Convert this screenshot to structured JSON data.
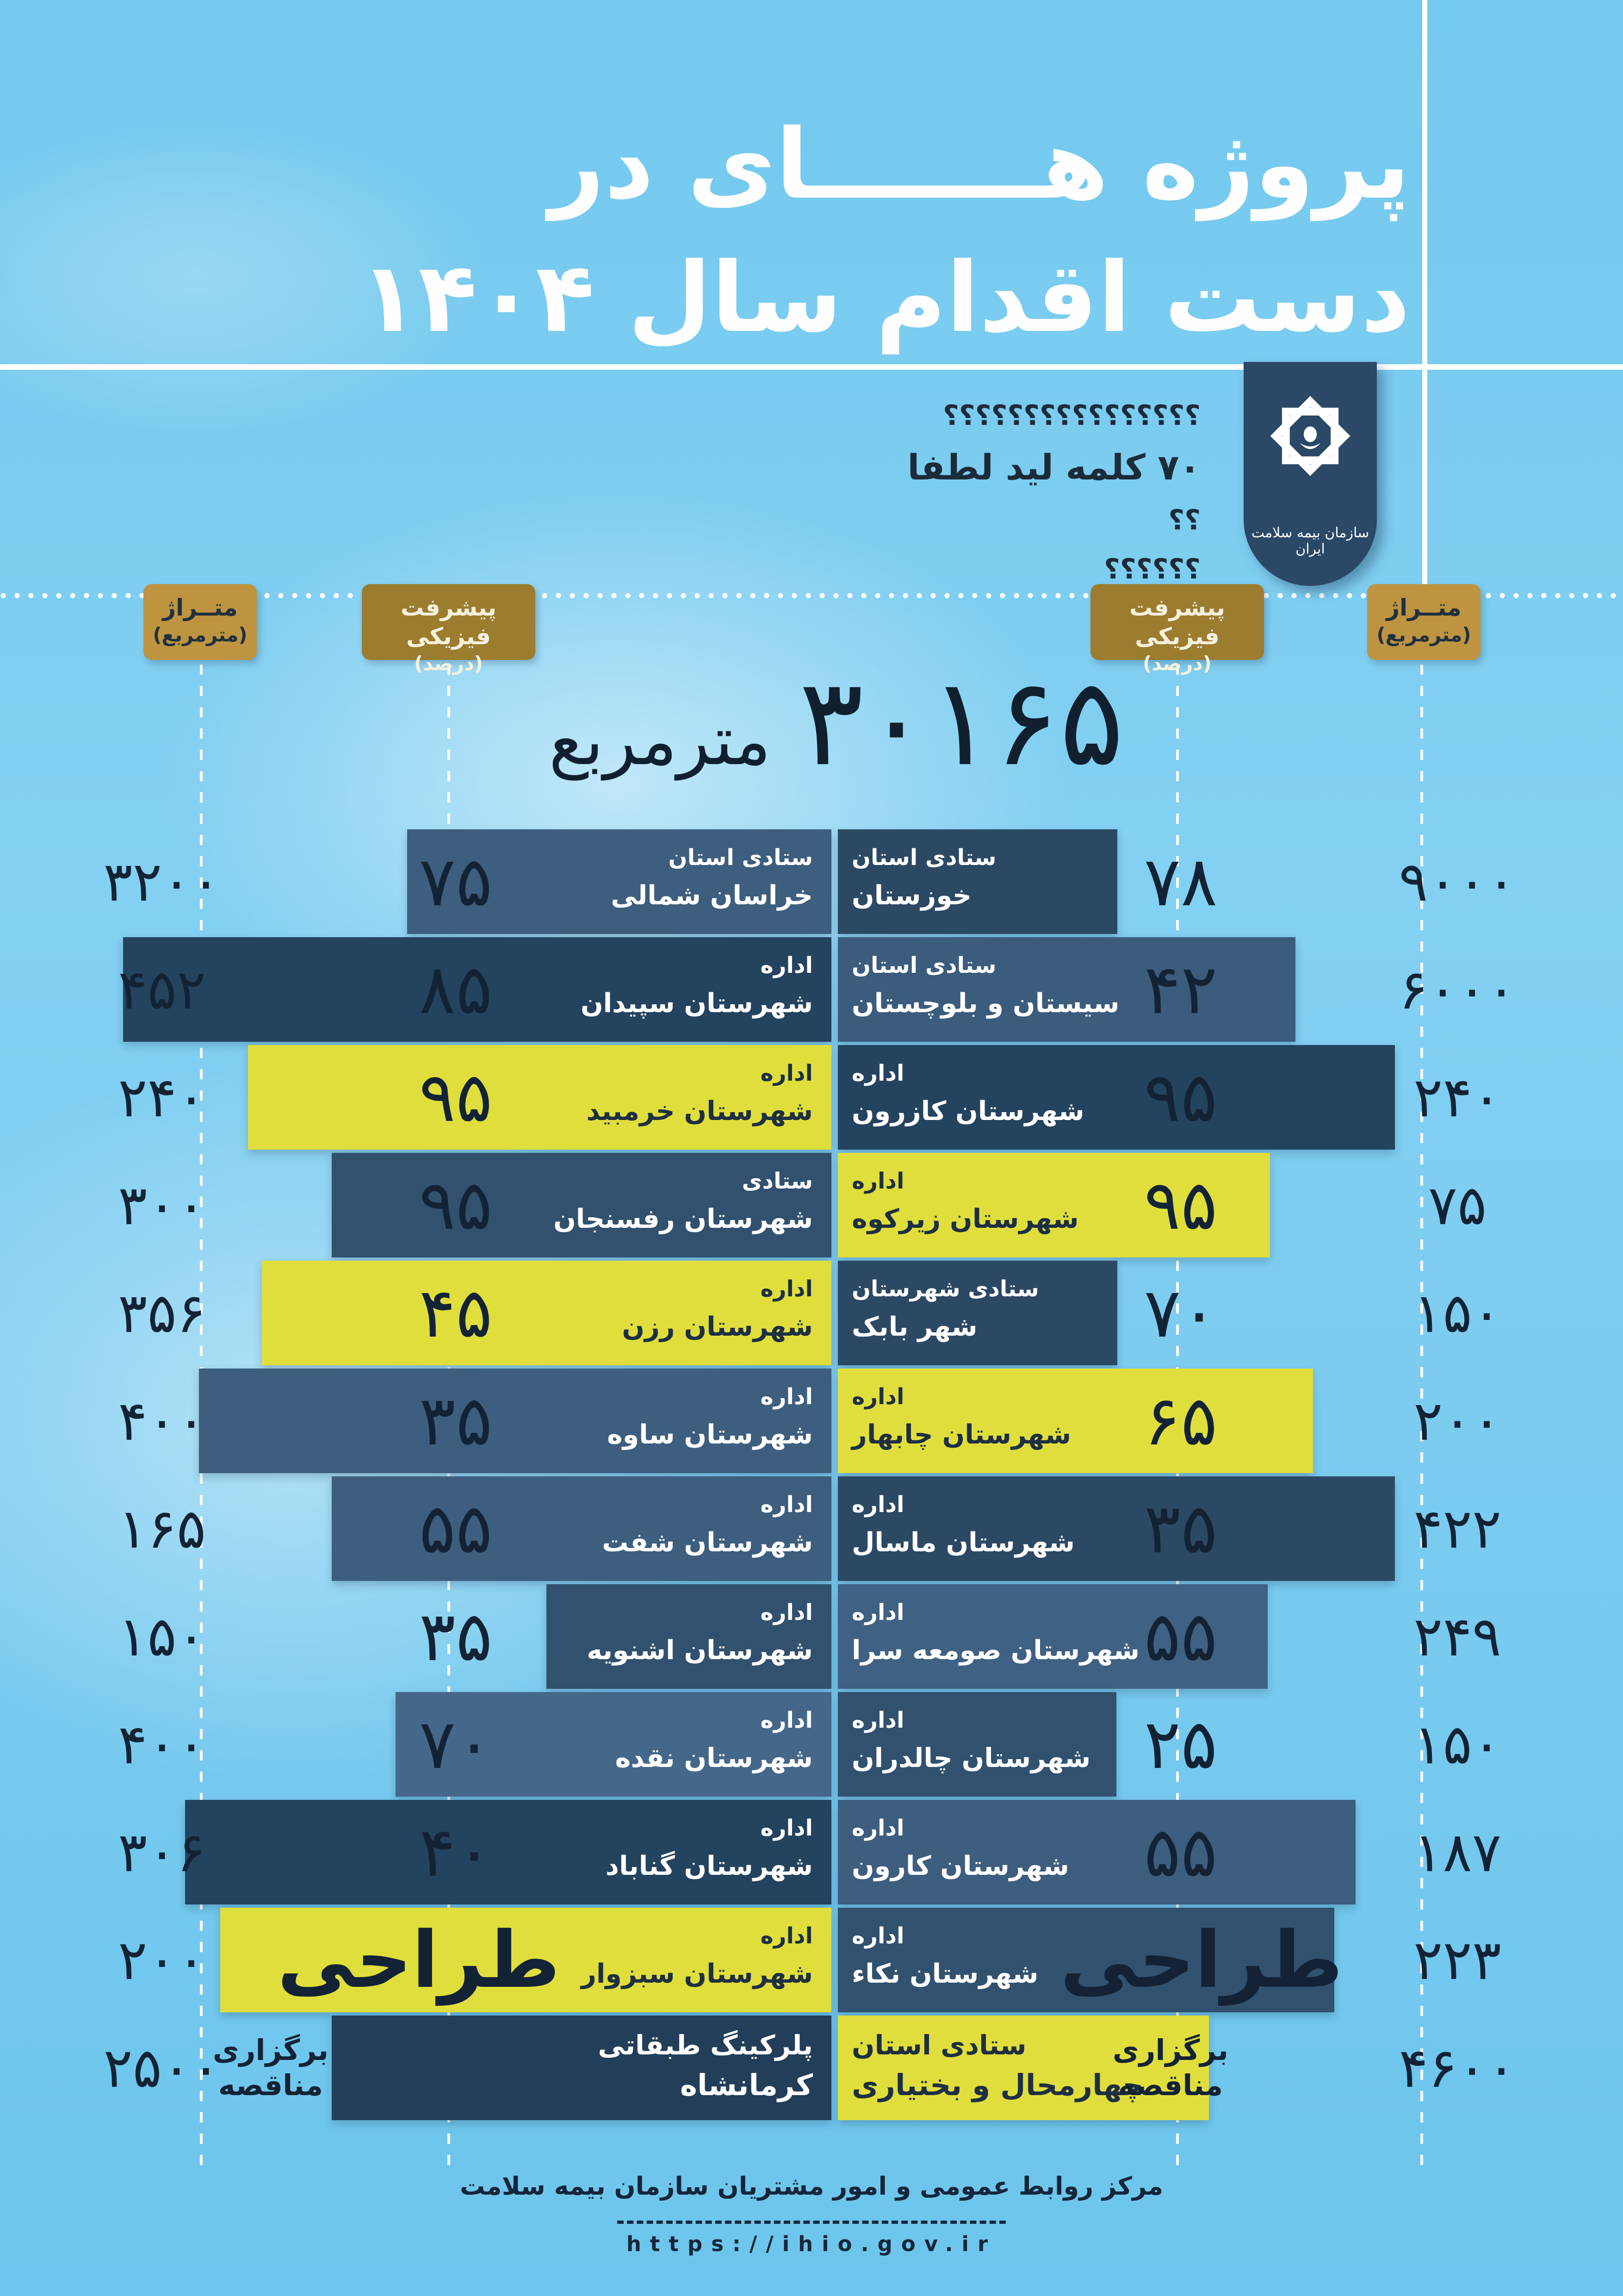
{
  "title": {
    "line1": "پروژه هـــــــای در",
    "line2": "دست اقدام سال ۱۴۰۴"
  },
  "lead": {
    "line1": "؟؟؟؟؟؟؟؟؟؟؟؟؟؟؟؟",
    "line2": "۷۰ کلمه لید لطفا",
    "line3": "؟؟",
    "line4": "؟؟؟؟؟؟"
  },
  "logo": {
    "org_name": "سازمان بیمه سلامت ایران",
    "emblem": "ihio-knot-star-icon"
  },
  "headers": {
    "metraj": {
      "line1": "متــراژ",
      "line2": "(مترمربع)"
    },
    "progress": {
      "line1": "پیشرفت فیزیکی",
      "line2": "(درصد)"
    }
  },
  "total": {
    "value": "۳۰۱۶۵",
    "unit": "مترمربع"
  },
  "colors": {
    "background": "#79CBEF",
    "yellow": "#E0DE3C",
    "gold_metraj": "#BE9440",
    "gold_progress": "#9C7C2F",
    "ink": "#132335",
    "bar_dark": "#24435F",
    "bar_navy": "#2C4964",
    "bar_mid": "#31516F",
    "bar_slate": "#3D5E7E",
    "bar_light": "#45678A"
  },
  "rows": [
    {
      "left": {
        "cat": "ستادی استان",
        "name": "خراسان شمالی",
        "value": "۷۵",
        "metraj": "۳۲۰۰",
        "bar_start": 880,
        "color": "#3D5E7E",
        "yellow": false,
        "value_style": "num",
        "value_dx": 0,
        "big_text": false
      },
      "right": {
        "cat": "ستادی استان",
        "name": "خوزستان",
        "value": "۷۸",
        "metraj": "۹۰۰۰",
        "bar_end": 2415,
        "color": "#2C4964",
        "yellow": false,
        "value_style": "num",
        "value_dx": 0,
        "big_text": false
      }
    },
    {
      "left": {
        "cat": "اداره",
        "name": "شهرستان سپیدان",
        "value": "۸۵",
        "metraj": "۴۵۲",
        "bar_start": 266,
        "color": "#24435F",
        "yellow": false,
        "value_style": "num",
        "value_dx": 0,
        "big_text": false
      },
      "right": {
        "cat": "ستادی استان",
        "name": "سیستان و بلوچستان",
        "value": "۴۲",
        "metraj": "۶۰۰۰",
        "bar_end": 2800,
        "color": "#3B5C7C",
        "yellow": false,
        "value_style": "num",
        "value_dx": 0,
        "big_text": false
      }
    },
    {
      "left": {
        "cat": "اداره",
        "name": "شهرستان خرمبید",
        "value": "۹۵",
        "metraj": "۲۴۰",
        "bar_start": 536,
        "color": "#E0DE3C",
        "yellow": true,
        "value_style": "num",
        "value_dx": 0,
        "big_text": false
      },
      "right": {
        "cat": "اداره",
        "name": "شهرستان کازرون",
        "value": "۹۵",
        "metraj": "۲۴۰",
        "bar_end": 3015,
        "color": "#24435F",
        "yellow": false,
        "value_style": "num",
        "value_dx": 0,
        "big_text": false
      }
    },
    {
      "left": {
        "cat": "ستادی",
        "name": "شهرستان رفسنجان",
        "value": "۹۵",
        "metraj": "۳۰۰",
        "bar_start": 717,
        "color": "#31516F",
        "yellow": false,
        "value_style": "num",
        "value_dx": 0,
        "big_text": false
      },
      "right": {
        "cat": "اداره",
        "name": "شهرستان زیرکوه",
        "value": "۹۵",
        "metraj": "۷۵",
        "bar_end": 2745,
        "color": "#E0DE3C",
        "yellow": true,
        "value_style": "num",
        "value_dx": 0,
        "big_text": false
      }
    },
    {
      "left": {
        "cat": "اداره",
        "name": "شهرستان رزن",
        "value": "۴۵",
        "metraj": "۳۵۶",
        "bar_start": 566,
        "color": "#E0DE3C",
        "yellow": true,
        "value_style": "num",
        "value_dx": 0,
        "big_text": false
      },
      "right": {
        "cat": "ستادی شهرستان",
        "name": "شهر بابک",
        "value": "۷۰",
        "metraj": "۱۵۰",
        "bar_end": 2415,
        "color": "#2C4964",
        "yellow": false,
        "value_style": "num",
        "value_dx": 0,
        "big_text": false
      }
    },
    {
      "left": {
        "cat": "اداره",
        "name": "شهرستان ساوه",
        "value": "۳۵",
        "metraj": "۴۰۰",
        "bar_start": 430,
        "color": "#3D5E7E",
        "yellow": false,
        "value_style": "num",
        "value_dx": 0,
        "big_text": false
      },
      "right": {
        "cat": "اداره",
        "name": "شهرستان چابهار",
        "value": "۶۵",
        "metraj": "۲۰۰",
        "bar_end": 2838,
        "color": "#E0DE3C",
        "yellow": true,
        "value_style": "num",
        "value_dx": 0,
        "big_text": false
      }
    },
    {
      "left": {
        "cat": "اداره",
        "name": "شهرستان شفت",
        "value": "۵۵",
        "metraj": "۱۶۵",
        "bar_start": 717,
        "color": "#3D5E7E",
        "yellow": false,
        "value_style": "num",
        "value_dx": 0,
        "big_text": false
      },
      "right": {
        "cat": "اداره",
        "name": "شهرستان ماسال",
        "value": "۳۵",
        "metraj": "۴۲۲",
        "bar_end": 3015,
        "color": "#2C4964",
        "yellow": false,
        "value_style": "num",
        "value_dx": 0,
        "big_text": false
      }
    },
    {
      "left": {
        "cat": "اداره",
        "name": "شهرستان اشنویه",
        "value": "۳۵",
        "metraj": "۱۵۰",
        "bar_start": 1181,
        "color": "#31516F",
        "yellow": false,
        "value_style": "num",
        "value_dx": 0,
        "big_text": false
      },
      "right": {
        "cat": "اداره",
        "name": "شهرستان صومعه سرا",
        "value": "۵۵",
        "metraj": "۲۴۹",
        "bar_end": 2740,
        "color": "#3F6183",
        "yellow": false,
        "value_style": "num",
        "value_dx": 0,
        "big_text": false
      }
    },
    {
      "left": {
        "cat": "اداره",
        "name": "شهرستان نقده",
        "value": "۷۰",
        "metraj": "۴۰۰",
        "bar_start": 855,
        "color": "#45678A",
        "yellow": false,
        "value_style": "num",
        "value_dx": 0,
        "big_text": false
      },
      "right": {
        "cat": "اداره",
        "name": "شهرستان چالدران",
        "value": "۲۵",
        "metraj": "۱۵۰",
        "bar_end": 2413,
        "color": "#31516F",
        "yellow": false,
        "value_style": "num",
        "value_dx": 0,
        "big_text": false
      }
    },
    {
      "left": {
        "cat": "اداره",
        "name": "شهرستان گناباد",
        "value": "۴۰",
        "metraj": "۳۰۶",
        "bar_start": 400,
        "color": "#24435F",
        "yellow": false,
        "value_style": "num",
        "value_dx": 0,
        "big_text": false
      },
      "right": {
        "cat": "اداره",
        "name": "شهرستان کارون",
        "value": "۵۵",
        "metraj": "۱۸۷",
        "bar_end": 2930,
        "color": "#3D5E7E",
        "yellow": false,
        "value_style": "num",
        "value_dx": 0,
        "big_text": false
      }
    },
    {
      "left": {
        "cat": "اداره",
        "name": "شهرستان سبزوار",
        "value": "طراحی",
        "metraj": "۲۰۰",
        "bar_start": 476,
        "color": "#E0DE3C",
        "yellow": true,
        "value_style": "word",
        "value_dx": -80,
        "big_text": false
      },
      "right": {
        "cat": "اداره",
        "name": "شهرستان نکاء",
        "value": "طراحی",
        "metraj": "۲۲۳",
        "bar_end": 2884,
        "color": "#31516F",
        "yellow": false,
        "value_style": "word",
        "value_dx": 45,
        "big_text": false
      }
    },
    {
      "left": {
        "cat": "پلرکینگ طبقاتی",
        "name": "کرمانشاه",
        "value": "برگزاری مناقصه",
        "metraj": "۲۵۰۰",
        "bar_start": 717,
        "color": "#223E59",
        "yellow": false,
        "value_style": "stack",
        "value_dx": -400,
        "big_text": true
      },
      "right": {
        "cat": "ستادی استان",
        "name": "چهارمحال و بختیاری",
        "value": "برگزاری مناقصه",
        "metraj": "۴۶۰۰",
        "bar_end": 2613,
        "color": "#E0DE3C",
        "yellow": true,
        "value_style": "stack",
        "value_dx": -22,
        "big_text": true
      }
    }
  ],
  "footer": {
    "line": "مرکز روابط عمومی و امور مشتریان سازمان بیمه سلامت",
    "url": "https://ihio.gov.ir"
  },
  "chart_data": {
    "type": "table",
    "title": "پروژه های در دست اقدام سال ۱۴۰۴",
    "total_area_m2": 30165,
    "columns": [
      "نام پروژه",
      "پیشرفت فیزیکی (درصد)",
      "متراژ (مترمربع)"
    ],
    "left_column_rows": [
      {
        "name": "ستادی استان خراسان شمالی",
        "progress": 75,
        "area_m2": 3200
      },
      {
        "name": "اداره شهرستان سپیدان",
        "progress": 85,
        "area_m2": 452
      },
      {
        "name": "اداره شهرستان خرمبید",
        "progress": 95,
        "area_m2": 240
      },
      {
        "name": "ستادی شهرستان رفسنجان",
        "progress": 95,
        "area_m2": 300
      },
      {
        "name": "اداره شهرستان رزن",
        "progress": 45,
        "area_m2": 356
      },
      {
        "name": "اداره شهرستان ساوه",
        "progress": 35,
        "area_m2": 400
      },
      {
        "name": "اداره شهرستان شفت",
        "progress": 55,
        "area_m2": 165
      },
      {
        "name": "اداره شهرستان اشنویه",
        "progress": 35,
        "area_m2": 150
      },
      {
        "name": "اداره شهرستان نقده",
        "progress": 70,
        "area_m2": 400
      },
      {
        "name": "اداره شهرستان گناباد",
        "progress": 40,
        "area_m2": 306
      },
      {
        "name": "اداره شهرستان سبزوار",
        "progress": "طراحی",
        "area_m2": 200
      },
      {
        "name": "پلرکینگ طبقاتی کرمانشاه",
        "progress": "برگزاری مناقصه",
        "area_m2": 2500
      }
    ],
    "right_column_rows": [
      {
        "name": "ستادی استان خوزستان",
        "progress": 78,
        "area_m2": 9000
      },
      {
        "name": "ستادی استان سیستان و بلوچستان",
        "progress": 42,
        "area_m2": 6000
      },
      {
        "name": "اداره شهرستان کازرون",
        "progress": 95,
        "area_m2": 240
      },
      {
        "name": "اداره شهرستان زیرکوه",
        "progress": 95,
        "area_m2": 75
      },
      {
        "name": "ستادی شهرستان شهر بابک",
        "progress": 70,
        "area_m2": 150
      },
      {
        "name": "اداره شهرستان چابهار",
        "progress": 65,
        "area_m2": 200
      },
      {
        "name": "اداره شهرستان ماسال",
        "progress": 35,
        "area_m2": 422
      },
      {
        "name": "اداره شهرستان صومعه سرا",
        "progress": 55,
        "area_m2": 249
      },
      {
        "name": "اداره شهرستان چالدران",
        "progress": 25,
        "area_m2": 150
      },
      {
        "name": "اداره شهرستان کارون",
        "progress": 55,
        "area_m2": 187
      },
      {
        "name": "اداره شهرستان نکاء",
        "progress": "طراحی",
        "area_m2": 223
      },
      {
        "name": "ستادی استان چهارمحال و بختیاری",
        "progress": "برگزاری مناقصه",
        "area_m2": 4600
      }
    ]
  }
}
